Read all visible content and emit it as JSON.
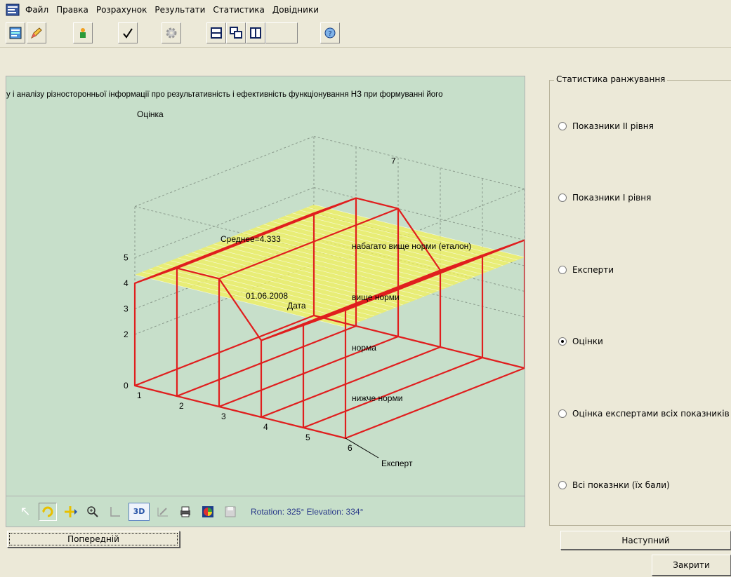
{
  "menu": {
    "items": [
      "Файл",
      "Правка",
      "Розрахунок",
      "Результати",
      "Статистика",
      "Довідники"
    ]
  },
  "toolbar": {
    "icons": [
      "report-icon",
      "pencil-icon",
      "figures-icon",
      "checkmark-icon",
      "gear-icon",
      "split-horizontal-icon",
      "cascade-windows-icon",
      "split-vertical-icon",
      "blank-icon",
      "help-icon"
    ]
  },
  "chart": {
    "banner": "у і аналізу різносторонньої інформації про результативність і ефективність функціонування НЗ при формуванні його",
    "z_axis_title": "Оцінка",
    "y_axis_title": "Дата",
    "x_axis_title": "Експерт",
    "date_label": "01.06.2008",
    "mean_label": "Среднее=4.333",
    "level_labels": [
      "набагато вище норми (еталон)",
      "вище норми",
      "норма",
      "нижче норми"
    ],
    "z_ticks": [
      "0",
      "2",
      "3",
      "4",
      "5"
    ],
    "x_ticks": [
      "1",
      "2",
      "3",
      "4",
      "5",
      "6"
    ],
    "top_tick": "7",
    "colors": {
      "line": "#e01e1e",
      "mean_plane": "#f3f25a",
      "background": "#c7dfca"
    }
  },
  "chart_data": {
    "type": "line",
    "title": "",
    "xlabel": "Експерт",
    "ylabel": "Дата",
    "zlabel": "Оцінка",
    "x": [
      1,
      2,
      3,
      4,
      5,
      6
    ],
    "series": [
      {
        "values": [
          4,
          5,
          5,
          3,
          4,
          5
        ]
      }
    ],
    "mean": 4.333,
    "zlim": [
      0,
      5
    ],
    "grid": true
  },
  "plot_toolbar": {
    "status": "Rotation: 325° Elevation: 334°",
    "button_3d": "3D"
  },
  "stats_panel": {
    "title": "Статистика ранжування",
    "options": [
      {
        "label": "Показники ІІ рівня",
        "checked": false
      },
      {
        "label": "Показники І рівня",
        "checked": false
      },
      {
        "label": "Експерти",
        "checked": false
      },
      {
        "label": "Оцінки",
        "checked": true
      },
      {
        "label": "Оцінка експертами всіх показників",
        "checked": false
      },
      {
        "label": "Всі показнки (їх бали)",
        "checked": false
      }
    ]
  },
  "buttons": {
    "prev": "Попередній",
    "next": "Наступний",
    "close": "Закрити"
  }
}
